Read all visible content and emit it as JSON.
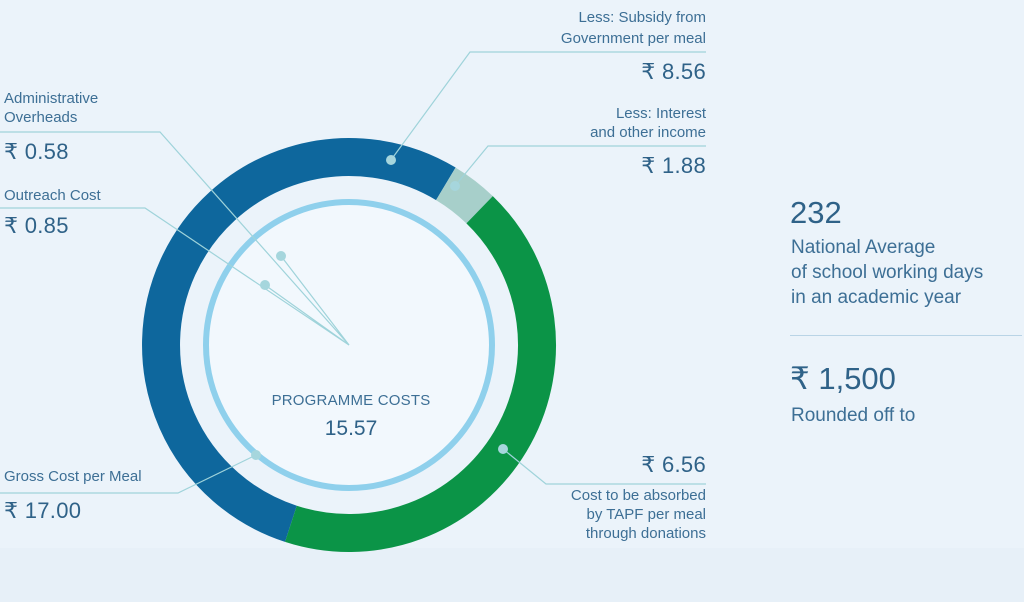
{
  "center": {
    "title": "PROGRAMME COSTS",
    "value": "15.57"
  },
  "left": {
    "admin_label_1": "Administrative",
    "admin_label_2": "Overheads",
    "admin_value": "₹ 0.58",
    "outreach_label": "Outreach Cost",
    "outreach_value": "₹ 0.85",
    "gross_label": "Gross Cost per Meal",
    "gross_value": "₹ 17.00"
  },
  "callouts": {
    "subsidy_label_1": "Less: Subsidy from",
    "subsidy_label_2": "Government per meal",
    "subsidy_value": "₹ 8.56",
    "interest_label_1": "Less: Interest",
    "interest_label_2": "and other income",
    "interest_value": "₹ 1.88",
    "tapf_value": "₹ 6.56",
    "tapf_label_1": "Cost to be absorbed",
    "tapf_label_2": "by TAPF per meal",
    "tapf_label_3": "through donations"
  },
  "stats": {
    "days_value": "232",
    "days_line_1": "National Average",
    "days_line_2": "of school working days",
    "days_line_3": "in an academic year",
    "annual_value": "₹ 1,500",
    "annual_label": "Rounded off to"
  },
  "colors": {
    "subsidy_blue": "#0e679d",
    "interest_teal": "#a7cfca",
    "tapf_green": "#0b9447",
    "inner_ring": "#8fd0ec",
    "leader_line": "#9fd3da"
  }
}
